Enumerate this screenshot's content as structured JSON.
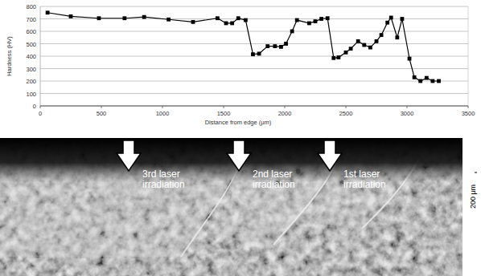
{
  "chart_data": {
    "type": "line",
    "x_label": "Distance from edge (μm)",
    "y_label": "Hardness (HV)",
    "x": [
      60,
      250,
      480,
      690,
      850,
      1050,
      1250,
      1450,
      1520,
      1570,
      1620,
      1680,
      1740,
      1790,
      1860,
      1920,
      1970,
      2010,
      2060,
      2100,
      2200,
      2250,
      2300,
      2350,
      2400,
      2440,
      2500,
      2540,
      2600,
      2650,
      2700,
      2750,
      2790,
      2840,
      2870,
      2920,
      2960,
      3020,
      3060,
      3110,
      3160,
      3210,
      3260
    ],
    "values": [
      750,
      720,
      705,
      705,
      715,
      695,
      675,
      705,
      665,
      665,
      705,
      690,
      415,
      420,
      480,
      480,
      475,
      500,
      600,
      690,
      665,
      680,
      700,
      705,
      385,
      390,
      430,
      460,
      520,
      490,
      470,
      520,
      570,
      670,
      710,
      550,
      700,
      380,
      230,
      200,
      225,
      200,
      200
    ],
    "color": "#000000",
    "marker": "square",
    "line_style": "solid",
    "xlim": [
      0,
      3500
    ],
    "xticks": [
      0,
      500,
      1000,
      1500,
      2000,
      2500,
      3000,
      3500
    ],
    "ylim": [
      0,
      800
    ],
    "yticks": [
      0,
      100,
      200,
      300,
      400,
      500,
      600,
      700,
      800
    ],
    "grid": true
  },
  "micrograph": {
    "annotations": [
      "3rd laser irradiation",
      "2nd laser irradiation",
      "1st laser irradiation"
    ],
    "scale_bar": "200 μm"
  }
}
